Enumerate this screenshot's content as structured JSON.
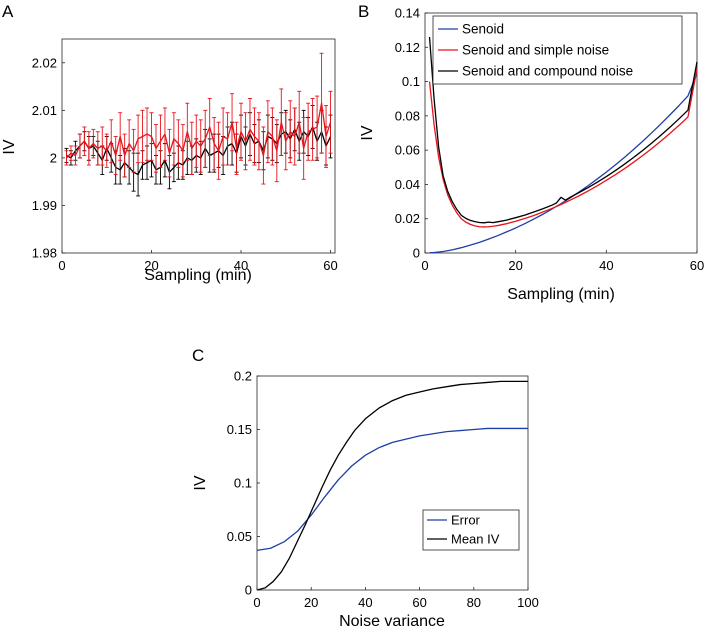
{
  "chart_data": [
    {
      "panel": "A",
      "type": "line",
      "xlabel": "Sampling (min)",
      "ylabel": "IV",
      "xlim": [
        0,
        61
      ],
      "ylim": [
        1.98,
        2.025
      ],
      "xticks": [
        0,
        20,
        40,
        60
      ],
      "yticks": [
        1.98,
        1.99,
        2,
        2.01,
        2.02
      ],
      "ytick_labels": [
        "1.98",
        "1.99",
        "2",
        "2.01",
        "2.02"
      ],
      "error_bars": true,
      "series": [
        {
          "name": "black series",
          "color": "#000000",
          "x": [
            1,
            2,
            3,
            4,
            5,
            6,
            7,
            8,
            9,
            10,
            11,
            12,
            13,
            14,
            15,
            16,
            17,
            18,
            19,
            20,
            21,
            22,
            23,
            24,
            25,
            26,
            27,
            28,
            29,
            30,
            31,
            32,
            33,
            34,
            35,
            36,
            37,
            38,
            39,
            40,
            41,
            42,
            43,
            44,
            45,
            46,
            47,
            48,
            49,
            50,
            51,
            52,
            53,
            54,
            55,
            56,
            57,
            58,
            59,
            60
          ],
          "values": [
            2.0005,
            2.0,
            2.0015,
            2.0025,
            2.0035,
            2.002,
            2.0025,
            2.001,
            1.9995,
            2.002,
            2.0,
            1.998,
            1.9975,
            1.999,
            1.998,
            1.997,
            1.9965,
            1.9985,
            1.999,
            1.9995,
            1.9975,
            1.998,
            1.9995,
            1.997,
            1.998,
            1.999,
            1.9985,
            2.0,
            1.9995,
            2.0005,
            2.0,
            2.002,
            2.0005,
            2.001,
            2.0015,
            2.0005,
            2.0025,
            2.003,
            2.001,
            2.0045,
            2.0025,
            2.005,
            2.003,
            2.0035,
            2.0015,
            2.0045,
            2.004,
            2.003,
            2.005,
            2.0055,
            2.004,
            2.006,
            2.0035,
            2.0055,
            2.0045,
            2.0065,
            2.0035,
            2.0055,
            2.0025,
            2.0045
          ],
          "errors": [
            0.0015,
            0.0015,
            0.002,
            0.0025,
            0.002,
            0.0025,
            0.002,
            0.0025,
            0.003,
            0.0025,
            0.003,
            0.0035,
            0.003,
            0.003,
            0.0035,
            0.004,
            0.0045,
            0.003,
            0.0035,
            0.0035,
            0.003,
            0.0035,
            0.0035,
            0.0035,
            0.003,
            0.0035,
            0.003,
            0.0035,
            0.003,
            0.0035,
            0.0035,
            0.004,
            0.0035,
            0.004,
            0.0035,
            0.004,
            0.004,
            0.0045,
            0.004,
            0.0045,
            0.004,
            0.0045,
            0.004,
            0.0045,
            0.004,
            0.0045,
            0.0045,
            0.004,
            0.0045,
            0.0045,
            0.004,
            0.0045,
            0.004,
            0.0045,
            0.004,
            0.0045,
            0.004,
            0.0045,
            0.004,
            0.0045
          ]
        },
        {
          "name": "red series",
          "color": "#e8141c",
          "x": [
            1,
            2,
            3,
            4,
            5,
            6,
            7,
            8,
            9,
            10,
            11,
            12,
            13,
            14,
            15,
            16,
            17,
            18,
            19,
            20,
            21,
            22,
            23,
            24,
            25,
            26,
            27,
            28,
            29,
            30,
            31,
            32,
            33,
            34,
            35,
            36,
            37,
            38,
            39,
            40,
            41,
            42,
            43,
            44,
            45,
            46,
            47,
            48,
            49,
            50,
            51,
            52,
            53,
            54,
            55,
            56,
            57,
            58,
            59,
            60
          ],
          "values": [
            2.0,
            2.001,
            2.0005,
            2.0025,
            2.0035,
            2.002,
            2.003,
            2.002,
            2.0025,
            2.0015,
            2.0035,
            2.0005,
            2.0045,
            2.0005,
            2.003,
            2.0015,
            2.004,
            2.0045,
            2.005,
            2.0045,
            2.002,
            2.0035,
            2.005,
            2.001,
            2.004,
            2.003,
            2.0015,
            2.0055,
            2.002,
            2.0035,
            2.0025,
            2.004,
            2.0065,
            2.003,
            2.0015,
            2.0045,
            2.004,
            2.0075,
            2.002,
            2.0055,
            2.0035,
            2.006,
            2.0045,
            2.0035,
            2.0005,
            2.0055,
            2.0045,
            2.0015,
            2.0075,
            2.0035,
            2.0055,
            2.0045,
            2.0075,
            2.002,
            2.0055,
            2.006,
            2.0065,
            2.0115,
            2.0045,
            2.0075
          ],
          "errors": [
            0.0015,
            0.0015,
            0.002,
            0.0025,
            0.003,
            0.0035,
            0.003,
            0.0035,
            0.004,
            0.0035,
            0.0045,
            0.004,
            0.005,
            0.0045,
            0.005,
            0.0045,
            0.005,
            0.0055,
            0.0055,
            0.005,
            0.005,
            0.0055,
            0.0055,
            0.005,
            0.0055,
            0.005,
            0.0055,
            0.006,
            0.0055,
            0.0055,
            0.0055,
            0.006,
            0.006,
            0.0055,
            0.006,
            0.006,
            0.0055,
            0.006,
            0.0055,
            0.006,
            0.006,
            0.0065,
            0.006,
            0.006,
            0.006,
            0.0065,
            0.006,
            0.0065,
            0.007,
            0.006,
            0.0065,
            0.006,
            0.0065,
            0.0065,
            0.006,
            0.0065,
            0.0065,
            0.0105,
            0.0065,
            0.0065
          ]
        }
      ]
    },
    {
      "panel": "B",
      "type": "line",
      "xlabel": "Sampling (min)",
      "ylabel": "IV",
      "xlim": [
        0,
        60
      ],
      "ylim": [
        0,
        0.14
      ],
      "xticks": [
        0,
        20,
        40,
        60
      ],
      "yticks": [
        0,
        0.02,
        0.04,
        0.06,
        0.08,
        0.1,
        0.12,
        0.14
      ],
      "ytick_labels": [
        "0",
        "0.02",
        "0.04",
        "0.06",
        "0.08",
        "0.1",
        "0.12",
        "0.14"
      ],
      "legend_position": "top-right",
      "series": [
        {
          "name": "Senoid",
          "color": "#1f3fa8",
          "x": [
            1,
            2,
            4,
            6,
            8,
            10,
            12,
            14,
            16,
            18,
            20,
            22,
            24,
            26,
            28,
            30,
            32,
            34,
            36,
            38,
            40,
            42,
            44,
            46,
            48,
            50,
            52,
            54,
            56,
            58,
            60
          ],
          "values": [
            0.0001,
            0.0003,
            0.0009,
            0.0018,
            0.0031,
            0.0046,
            0.0062,
            0.0081,
            0.0101,
            0.0123,
            0.0146,
            0.0171,
            0.0198,
            0.0226,
            0.0256,
            0.0288,
            0.0321,
            0.0356,
            0.0393,
            0.0432,
            0.0472,
            0.0514,
            0.0558,
            0.0604,
            0.0651,
            0.0701,
            0.0752,
            0.0805,
            0.0859,
            0.0916,
            0.1047
          ]
        },
        {
          "name": "Senoid and simple noise",
          "color": "#e8141c",
          "x": [
            1,
            2,
            3,
            4,
            5,
            6,
            7,
            8,
            9,
            10,
            11,
            12,
            13,
            14,
            15,
            16,
            18,
            20,
            22,
            24,
            26,
            28,
            30,
            32,
            34,
            36,
            38,
            40,
            42,
            44,
            46,
            48,
            50,
            52,
            54,
            56,
            58,
            60
          ],
          "values": [
            0.1,
            0.075,
            0.056,
            0.043,
            0.034,
            0.028,
            0.0235,
            0.02,
            0.018,
            0.0167,
            0.0158,
            0.0153,
            0.0152,
            0.0153,
            0.0156,
            0.016,
            0.0171,
            0.0185,
            0.0201,
            0.0219,
            0.0239,
            0.026,
            0.0283,
            0.0308,
            0.0334,
            0.0362,
            0.0392,
            0.0424,
            0.0457,
            0.0492,
            0.0529,
            0.0568,
            0.0609,
            0.0652,
            0.0697,
            0.0744,
            0.0793,
            0.1075
          ]
        },
        {
          "name": "Senoid and compound noise",
          "color": "#000000",
          "x": [
            1,
            2,
            3,
            4,
            5,
            6,
            7,
            8,
            9,
            10,
            11,
            12,
            13,
            14,
            15,
            16,
            18,
            20,
            22,
            24,
            26,
            28,
            29,
            30,
            31,
            32,
            34,
            36,
            38,
            40,
            42,
            44,
            46,
            48,
            50,
            52,
            54,
            56,
            58,
            60
          ],
          "values": [
            0.126,
            0.09,
            0.062,
            0.045,
            0.036,
            0.03,
            0.0255,
            0.022,
            0.0202,
            0.019,
            0.0183,
            0.0178,
            0.0176,
            0.018,
            0.0177,
            0.0182,
            0.0192,
            0.0206,
            0.0221,
            0.0239,
            0.0258,
            0.0279,
            0.0292,
            0.0325,
            0.0308,
            0.0325,
            0.0353,
            0.0382,
            0.0413,
            0.0446,
            0.0481,
            0.0518,
            0.0557,
            0.0598,
            0.0641,
            0.0686,
            0.0733,
            0.0782,
            0.0833,
            0.1115
          ]
        }
      ]
    },
    {
      "panel": "C",
      "type": "line",
      "xlabel": "Noise variance",
      "ylabel": "IV",
      "xlim": [
        0,
        100
      ],
      "ylim": [
        0,
        0.2
      ],
      "xticks": [
        0,
        20,
        40,
        60,
        80,
        100
      ],
      "yticks": [
        0,
        0.05,
        0.1,
        0.15,
        0.2
      ],
      "ytick_labels": [
        "0",
        "0.05",
        "0.1",
        "0.15",
        "0.2"
      ],
      "legend_position": "lower-right",
      "series": [
        {
          "name": "Error",
          "color": "#1f3fa8",
          "x": [
            0,
            5,
            10,
            15,
            20,
            25,
            30,
            35,
            40,
            45,
            50,
            55,
            60,
            65,
            70,
            75,
            80,
            85,
            90,
            95,
            100
          ],
          "values": [
            0.037,
            0.039,
            0.045,
            0.055,
            0.07,
            0.087,
            0.103,
            0.116,
            0.126,
            0.133,
            0.138,
            0.141,
            0.144,
            0.146,
            0.148,
            0.149,
            0.15,
            0.151,
            0.151,
            0.151,
            0.151
          ]
        },
        {
          "name": "Mean IV",
          "color": "#000000",
          "x": [
            0,
            3,
            6,
            9,
            12,
            15,
            18,
            21,
            24,
            27,
            30,
            33,
            36,
            40,
            45,
            50,
            55,
            60,
            65,
            70,
            75,
            80,
            85,
            90,
            95,
            100
          ],
          "values": [
            0.0,
            0.002,
            0.008,
            0.017,
            0.03,
            0.046,
            0.062,
            0.079,
            0.096,
            0.112,
            0.126,
            0.138,
            0.149,
            0.16,
            0.17,
            0.177,
            0.182,
            0.185,
            0.188,
            0.19,
            0.192,
            0.193,
            0.194,
            0.195,
            0.195,
            0.195
          ]
        }
      ]
    }
  ],
  "panels": {
    "A": {
      "label": "A"
    },
    "B": {
      "label": "B"
    },
    "C": {
      "label": "C"
    }
  }
}
